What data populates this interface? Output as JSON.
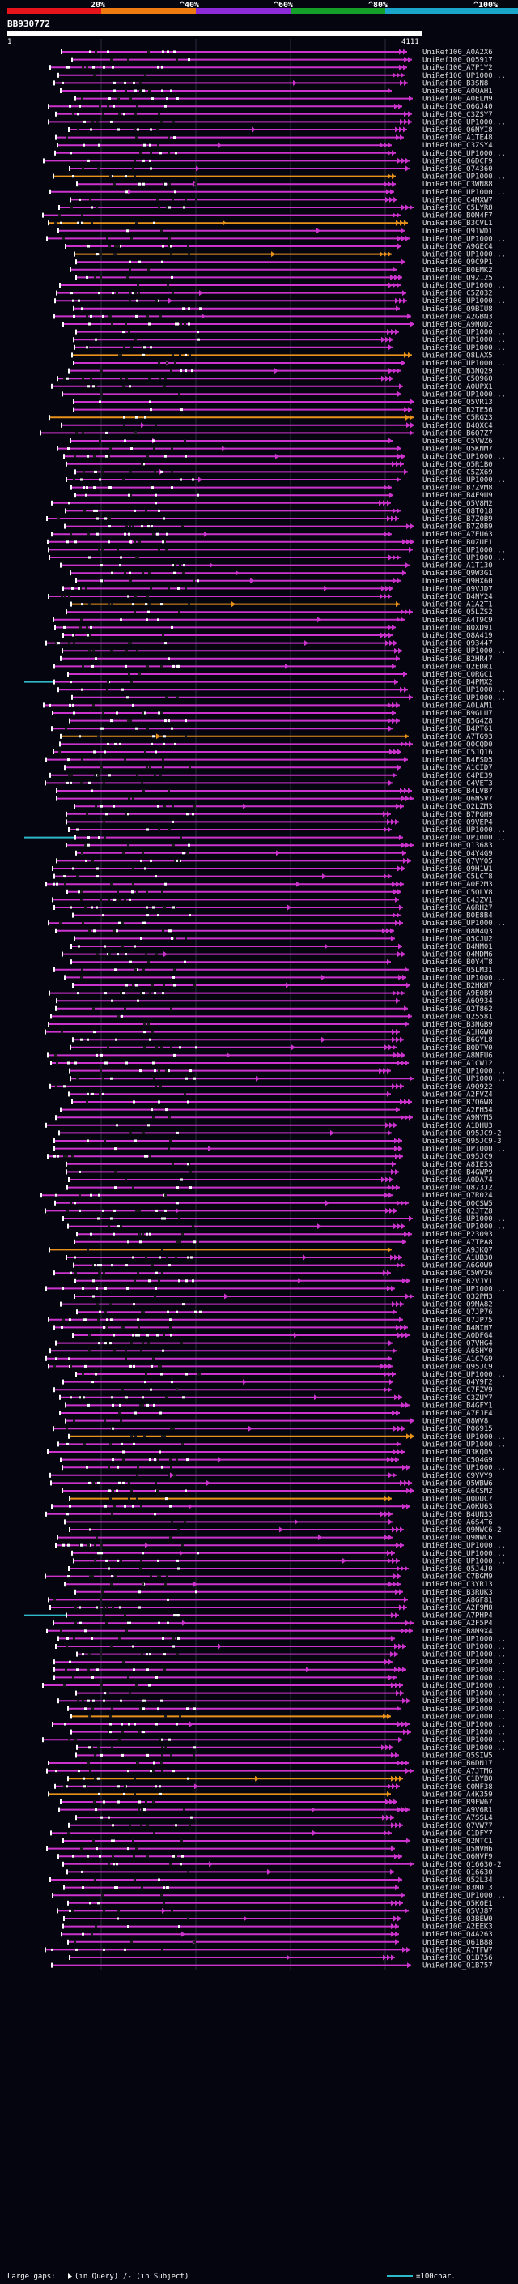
{
  "chart_data": {
    "type": "alignment-overview",
    "query_id": "BB930772",
    "query_start": "1",
    "query_end": "4111",
    "scale": {
      "labels": [
        "20%",
        "^40%",
        "^60%",
        "^80%",
        "^100%"
      ],
      "colors": [
        "#e8141c",
        "#ee7b10",
        "#8e2bd8",
        "#14a028",
        "#1aa6c8"
      ]
    },
    "footer": {
      "large_gaps": "Large gaps:",
      "in_query": "(in Query)",
      "in_subject": "/- (in Subject)",
      "legend_scale": "=100char."
    },
    "colors": {
      "hit": "#cc33cc",
      "orange": "#e8921a",
      "cyan": "#2fb8c8",
      "white": "#ffffff",
      "background": "#050510",
      "grid": "#2b2b3c"
    },
    "hits": [
      "UniRef100_A0A2X6",
      "UniRef100_Q05917",
      "UniRef100_A7P1Y2",
      "UniRef100_UP1000...",
      "UniRef100_B3SN8",
      "UniRef100_A0QAH1",
      "UniRef100_A0ELM9",
      "UniRef100_Q6GJ40",
      "UniRef100_C3ZSY7",
      "UniRef100_UP1000...",
      "UniRef100_Q6NYI8",
      "UniRef100_A1TE48",
      "UniRef100_C3ZSY4",
      "UniRef100_UP1000...",
      "UniRef100_Q6DCF9",
      "UniRef100_Q74360",
      "UniRef100_UP1000...",
      "UniRef100_C3WN88",
      "UniRef100_UP1000...",
      "UniRef100_C4MXW7",
      "UniRef100_C5LYR8",
      "UniRef100_B0M4F7",
      "UniRef100_B3CVL1",
      "UniRef100_Q91WD1",
      "UniRef100_UP1000...",
      "UniRef100_A9GEC4",
      "UniRef100_UP1000...",
      "UniRef100_Q9C9P1",
      "UniRef100_B0EMK2",
      "UniRef100_Q92125",
      "UniRef100_UP1000...",
      "UniRef100_C5Z032",
      "UniRef100_UP1000...",
      "UniRef100_Q9BIU8",
      "UniRef100_A2GBN3",
      "UniRef100_A9NQD2",
      "UniRef100_UP1000...",
      "UniRef100_UP1000...",
      "UniRef100_UP1000...",
      "UniRef100_Q8LAX5",
      "UniRef100_UP1000...",
      "UniRef100_B3NQ29",
      "UniRef100_C5Q960",
      "UniRef100_A0UPX1",
      "UniRef100_UP1000...",
      "UniRef100_Q5VR13",
      "UniRef100_B2TE56",
      "UniRef100_C5RG23",
      "UniRef100_B4QXC4",
      "UniRef100_B6Q7Z7",
      "UniRef100_C5VWZ6",
      "UniRef100_Q5KNM7",
      "UniRef100_UP1000...",
      "UniRef100_Q5R1B0",
      "UniRef100_C5ZX69",
      "UniRef100_UP1000...",
      "UniRef100_B7ZVM8",
      "UniRef100_B4F9U9",
      "UniRef100_Q5V8M2",
      "UniRef100_Q8T018",
      "UniRef100_B7Z0B9",
      "UniRef100_B7Z0B9",
      "UniRef100_A7EU63",
      "UniRef100_B0ZUE1",
      "UniRef100_UP1000...",
      "UniRef100_UP1000...",
      "UniRef100_A1T130",
      "UniRef100_Q9W3G1",
      "UniRef100_Q9HX60",
      "UniRef100_Q9VJD7",
      "UniRef100_B4NY24",
      "UniRef100_A1A2T1",
      "UniRef100_Q5LZS2",
      "UniRef100_A4T9C9",
      "UniRef100_B0XD91",
      "UniRef100_Q8A419",
      "UniRef100_Q93447",
      "UniRef100_UP1000...",
      "UniRef100_B2HR47",
      "UniRef100_Q2EDR1",
      "UniRef100_C0RGC1",
      "UniRef100_B4PMX2",
      "UniRef100_UP1000...",
      "UniRef100_UP1000...",
      "UniRef100_A0LAM1",
      "UniRef100_B9GLU7",
      "UniRef100_B5G4Z8",
      "UniRef100_B4PT61",
      "UniRef100_A7TG93",
      "UniRef100_Q0CQD0",
      "UniRef100_C5JQ16",
      "UniRef100_B4FSD5",
      "UniRef100_A1CID7",
      "UniRef100_C4PE39",
      "UniRef100_C4VET3",
      "UniRef100_B4LVB7",
      "UniRef100_Q6NSV7",
      "UniRef100_Q2LZM3",
      "UniRef100_B7PGH9",
      "UniRef100_Q9VEP4",
      "UniRef100_UP1000...",
      "UniRef100_UP1000...",
      "UniRef100_Q13683",
      "UniRef100_Q4Y4G9",
      "UniRef100_Q7VY05",
      "UniRef100_Q9H1W1",
      "UniRef100_C5LCT8",
      "UniRef100_A0E2M3",
      "UniRef100_C5QLV8",
      "UniRef100_C4JZV1",
      "UniRef100_A6RH27",
      "UniRef100_B0E8B4",
      "UniRef100_UP1000...",
      "UniRef100_Q8N4Q3",
      "UniRef100_Q5CJU2",
      "UniRef100_B4MM01",
      "UniRef100_Q4MDM6",
      "UniRef100_B0Y4T8",
      "UniRef100_Q5LM31",
      "UniRef100_UP1000...",
      "UniRef100_B2HKH7",
      "UniRef100_A9E0B9",
      "UniRef100_A6Q934",
      "UniRef100_Q2T862",
      "UniRef100_Q25581",
      "UniRef100_B3NGB9",
      "UniRef100_A1HGW0",
      "UniRef100_B6GYL8",
      "UniRef100_B0DTV0",
      "UniRef100_A8NFU6",
      "UniRef100_A1CW12",
      "UniRef100_UP1000...",
      "UniRef100_UP1000...",
      "UniRef100_A9Q922",
      "UniRef100_A2FVZ4",
      "UniRef100_B7Q6W8",
      "UniRef100_A2FH54",
      "UniRef100_A9NYM5",
      "UniRef100_A1DHU3",
      "UniRef100_Q95JC9-2",
      "UniRef100_Q95JC9-3",
      "UniRef100_UP1000...",
      "UniRef100_Q95JC9",
      "UniRef100_A8IE53",
      "UniRef100_B4GWP9",
      "UniRef100_A0DA74",
      "UniRef100_Q873J2",
      "UniRef100_Q7R024",
      "UniRef100_Q0CSW5",
      "UniRef100_Q2JTZ8",
      "UniRef100_UP1000...",
      "UniRef100_UP1000...",
      "UniRef100_P23093",
      "UniRef100_A7TPA8",
      "UniRef100_A9JKQ7",
      "UniRef100_A1UB30",
      "UniRef100_A6G0W9",
      "UniRef100_C5WV26",
      "UniRef100_B2VJV1",
      "UniRef100_UP1000...",
      "UniRef100_Q32PM3",
      "UniRef100_Q9MA82",
      "UniRef100_Q7JP76",
      "UniRef100_Q7JP75",
      "UniRef100_B4NIH7",
      "UniRef100_A0DFG4",
      "UniRef100_Q7VHG4",
      "UniRef100_A6SHY0",
      "UniRef100_A1C7G9",
      "UniRef100_Q95JC9",
      "UniRef100_UP1000...",
      "UniRef100_Q4Y9F2",
      "UniRef100_C7FZV9",
      "UniRef100_C3ZUY7",
      "UniRef100_B4GFY1",
      "UniRef100_A7EJE4",
      "UniRef100_Q8WV8",
      "UniRef100_P06915",
      "UniRef100_UP1000...",
      "UniRef100_UP1000...",
      "UniRef100_O3KQ05",
      "UniRef100_C5Q4G9",
      "UniRef100_UP1000...",
      "UniRef100_C9YVY9",
      "UniRef100_Q5WBW6",
      "UniRef100_A6CSM2",
      "UniRef100_Q0DUC7",
      "UniRef100_A0KU63",
      "UniRef100_B4UN33",
      "UniRef100_A6S4T6",
      "UniRef100_Q9NWC6-2",
      "UniRef100_Q9NWC6",
      "UniRef100_UP1000...",
      "UniRef100_UP1000...",
      "UniRef100_UP1000...",
      "UniRef100_Q5J4J0",
      "UniRef100_C7BGM9",
      "UniRef100_C3YR13",
      "UniRef100_B3RUK3",
      "UniRef100_A8GF81",
      "UniRef100_A2F9M8",
      "UniRef100_A7PHP4",
      "UniRef100_A2F5P4",
      "UniRef100_B8M9X4",
      "UniRef100_UP1000...",
      "UniRef100_UP1000...",
      "UniRef100_UP1000...",
      "UniRef100_UP1000...",
      "UniRef100_UP1000...",
      "UniRef100_UP1000...",
      "UniRef100_UP1000...",
      "UniRef100_UP1000...",
      "UniRef100_UP1000...",
      "UniRef100_UP1000...",
      "UniRef100_UP1000...",
      "UniRef100_UP1000...",
      "UniRef100_UP1000...",
      "UniRef100_UP1000...",
      "UniRef100_UP1000...",
      "UniRef100_Q5SIW5",
      "UniRef100_B6DN17",
      "UniRef100_A7JTM6",
      "UniRef100_C1DYB0",
      "UniRef100_C0MF38",
      "UniRef100_A4K359",
      "UniRef100_B9FW67",
      "UniRef100_A9V6R1",
      "UniRef100_A7SSL4",
      "UniRef100_Q7VW77",
      "UniRef100_C1DFY7",
      "UniRef100_Q2MTC1",
      "UniRef100_Q5NVH6",
      "UniRef100_Q6NVF9",
      "UniRef100_Q16630-2",
      "UniRef100_Q16630",
      "UniRef100_Q52L34",
      "UniRef100_B3MDT3",
      "UniRef100_UP1000...",
      "UniRef100_Q5K0E1",
      "UniRef100_Q5VJ87",
      "UniRef100_Q3BEW0",
      "UniRef100_A2EEK3",
      "UniRef100_Q4A263",
      "UniRef100_Q61B88",
      "UniRef100_A7TFW7",
      "UniRef100_Q1B756",
      "UniRef100_Q1B757"
    ]
  }
}
